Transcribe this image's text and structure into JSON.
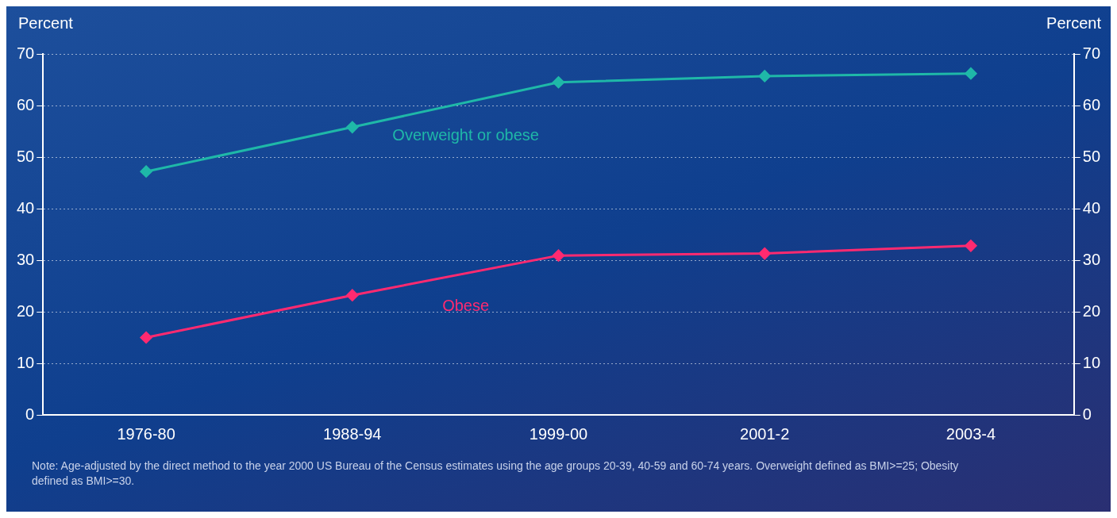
{
  "chart_data": {
    "type": "line",
    "ylabel": "Percent",
    "y2label": "Percent",
    "categories": [
      "1976-80",
      "1988-94",
      "1999-00",
      "2001-2",
      "2003-4"
    ],
    "ylim": [
      0,
      70
    ],
    "yticks": [
      0,
      10,
      20,
      30,
      40,
      50,
      60,
      70
    ],
    "y2lim": [
      0,
      70
    ],
    "y2ticks": [
      0,
      10,
      20,
      30,
      40,
      50,
      60,
      70
    ],
    "series": [
      {
        "name": "Overweight or obese",
        "color": "#1fb8a8",
        "values": [
          47.2,
          55.8,
          64.5,
          65.7,
          66.2
        ]
      },
      {
        "name": "Obese",
        "color": "#ff2a70",
        "values": [
          15,
          23.2,
          30.9,
          31.3,
          32.8
        ]
      }
    ],
    "grid": "y",
    "marker": "diamond",
    "line_style": "solid",
    "legend": false,
    "annotations": [
      "Note: Age-adjusted by the direct method to the year 2000 US Bureau of the Census estimates using the age groups 20-39, 40-59 and 60-74 years.  Overweight defined as BMI>=25; Obesity defined as BMI>=30."
    ]
  }
}
